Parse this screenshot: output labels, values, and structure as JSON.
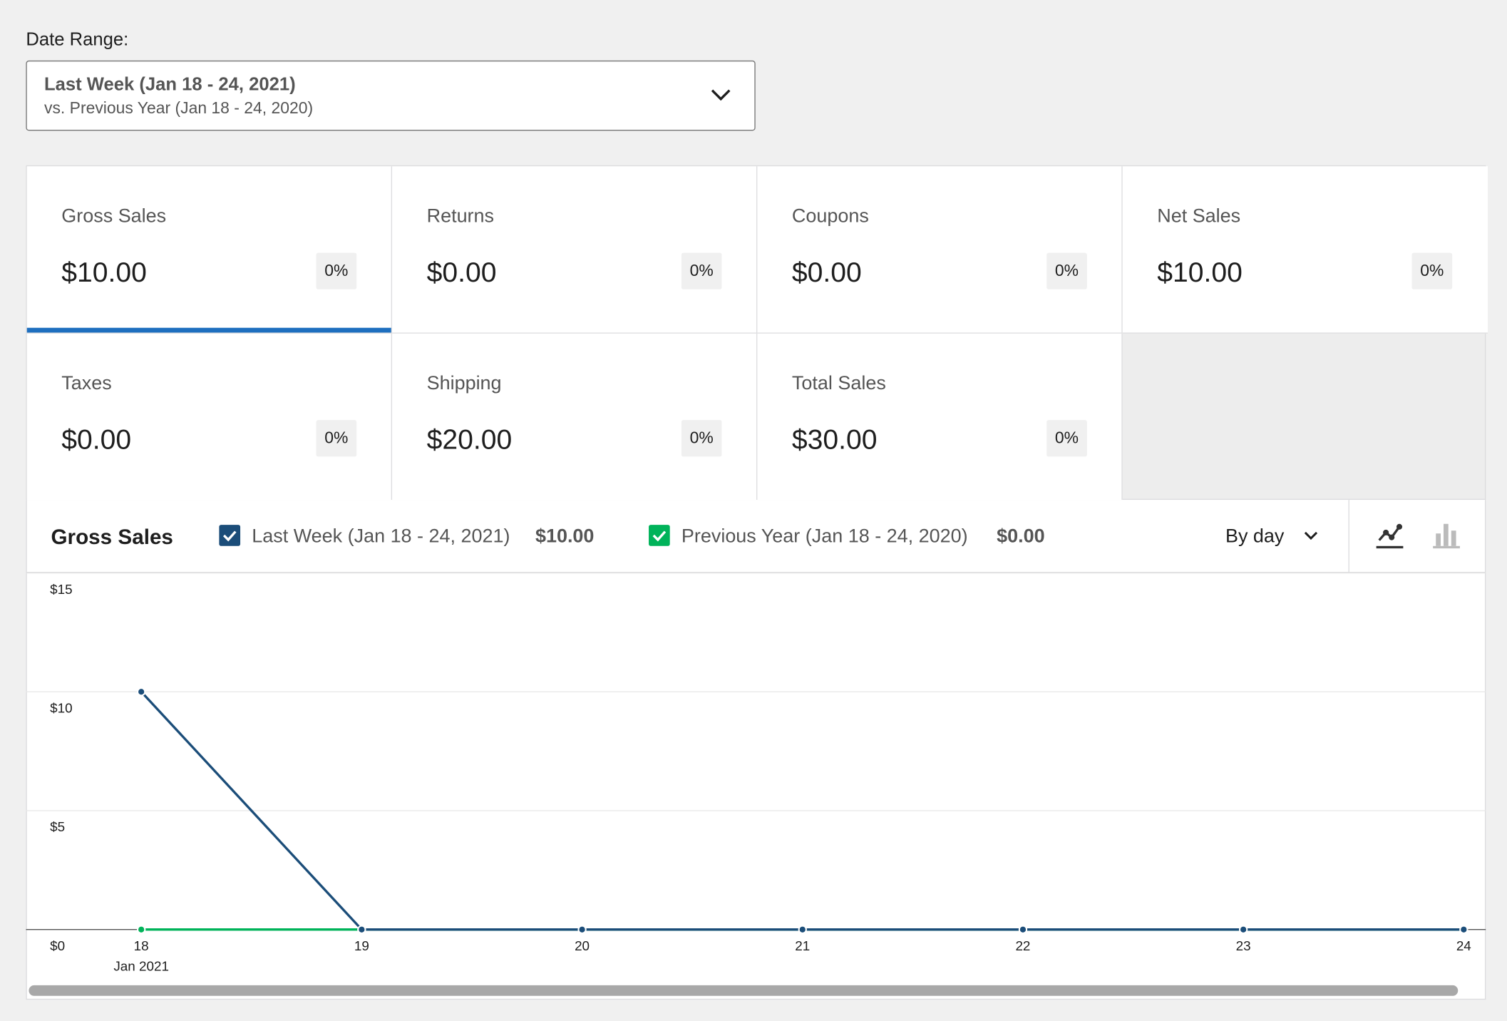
{
  "date_range": {
    "label": "Date Range:",
    "primary": "Last Week (Jan 18 - 24, 2021)",
    "secondary": "vs. Previous Year (Jan 18 - 24, 2020)"
  },
  "tiles": [
    {
      "label": "Gross Sales",
      "value": "$10.00",
      "delta": "0%"
    },
    {
      "label": "Returns",
      "value": "$0.00",
      "delta": "0%"
    },
    {
      "label": "Coupons",
      "value": "$0.00",
      "delta": "0%"
    },
    {
      "label": "Net Sales",
      "value": "$10.00",
      "delta": "0%"
    },
    {
      "label": "Taxes",
      "value": "$0.00",
      "delta": "0%"
    },
    {
      "label": "Shipping",
      "value": "$20.00",
      "delta": "0%"
    },
    {
      "label": "Total Sales",
      "value": "$30.00",
      "delta": "0%"
    }
  ],
  "chart_header": {
    "title": "Gross Sales",
    "legend_totals": [
      "$10.00",
      "$0.00"
    ],
    "interval": "By day"
  },
  "chart_data": {
    "type": "line",
    "categories": [
      "18",
      "19",
      "20",
      "21",
      "22",
      "23",
      "24"
    ],
    "x_sublabel": "Jan 2021",
    "series": [
      {
        "name": "Previous Year (Jan 18 - 24, 2020)",
        "color": "#00b35a",
        "values": [
          0,
          0,
          0,
          0,
          0,
          0,
          0
        ]
      },
      {
        "name": "Last Week (Jan 18 - 24, 2021)",
        "color": "#1b4d79",
        "values": [
          10,
          0,
          0,
          0,
          0,
          0,
          0
        ]
      }
    ],
    "ylim": [
      0,
      15
    ],
    "yticks": [
      {
        "value": 0,
        "label": "$0"
      },
      {
        "value": 5,
        "label": "$5"
      },
      {
        "value": 10,
        "label": "$10"
      },
      {
        "value": 15,
        "label": "$15"
      }
    ],
    "grid": true
  }
}
